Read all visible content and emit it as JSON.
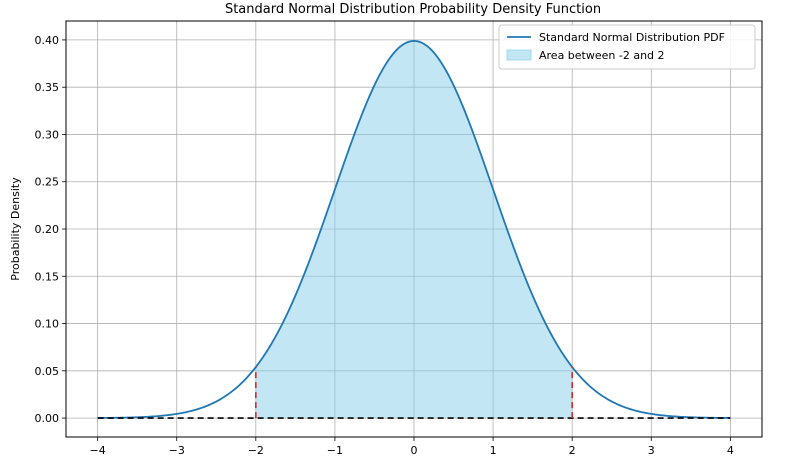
{
  "chart_data": {
    "type": "line",
    "title": "Standard Normal Distribution Probability Density Function",
    "xlabel": "",
    "ylabel": "Probability Density",
    "xlim": [
      -4.4,
      4.4
    ],
    "ylim": [
      -0.02,
      0.42
    ],
    "x_ticks": [
      -4,
      -3,
      -2,
      -1,
      0,
      1,
      2,
      3,
      4
    ],
    "x_tick_labels": [
      "−4",
      "−3",
      "−2",
      "−1",
      "0",
      "1",
      "2",
      "3",
      "4"
    ],
    "y_ticks": [
      0.0,
      0.05,
      0.1,
      0.15,
      0.2,
      0.25,
      0.3,
      0.35,
      0.4
    ],
    "y_tick_labels": [
      "0.00",
      "0.05",
      "0.10",
      "0.15",
      "0.20",
      "0.25",
      "0.30",
      "0.35",
      "0.40"
    ],
    "grid": true,
    "series": [
      {
        "name": "Standard Normal Distribution PDF",
        "color": "#1f77b4",
        "x": [
          -4.0,
          -3.5,
          -3.0,
          -2.5,
          -2.0,
          -1.5,
          -1.0,
          -0.5,
          0.0,
          0.5,
          1.0,
          1.5,
          2.0,
          2.5,
          3.0,
          3.5,
          4.0
        ],
        "y": [
          0.0001,
          0.0009,
          0.0044,
          0.0175,
          0.054,
          0.1295,
          0.242,
          0.3521,
          0.3989,
          0.3521,
          0.242,
          0.1295,
          0.054,
          0.0175,
          0.0044,
          0.0009,
          0.0001
        ]
      }
    ],
    "fill": {
      "name": "Area between -2 and 2",
      "x_from": -2,
      "x_to": 2,
      "color": "#87ceeb"
    },
    "vlines": [
      {
        "x": -2,
        "y_top": 0.054,
        "color": "#d62728",
        "style": "dashed"
      },
      {
        "x": 2,
        "y_top": 0.054,
        "color": "#d62728",
        "style": "dashed"
      }
    ],
    "hline": {
      "y": 0,
      "x_from": -4,
      "x_to": 4,
      "color": "#000000",
      "style": "dashed"
    },
    "legend": {
      "position": "top-right",
      "entries": [
        "Standard Normal Distribution PDF",
        "Area between -2 and 2"
      ]
    }
  }
}
